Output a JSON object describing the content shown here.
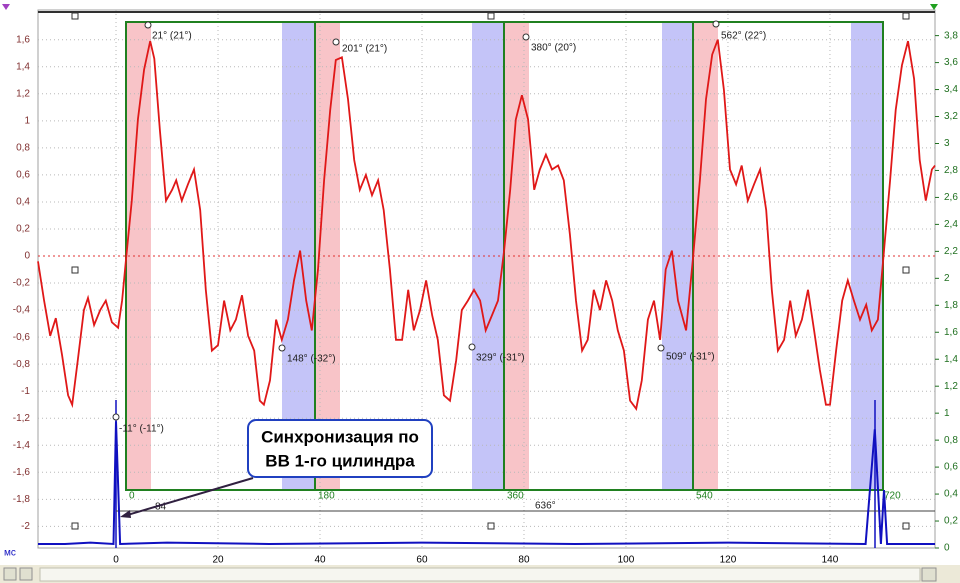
{
  "chart_data": {
    "type": "line",
    "x_unit": "мс",
    "xlim": [
      -15.3,
      160.6
    ],
    "xticks": [
      0,
      20,
      40,
      60,
      80,
      100,
      120,
      140
    ],
    "ylim": [
      -2.16,
      1.82
    ],
    "yticks": [
      -2,
      {
        "value": -1.8,
        "label": "-1,8"
      },
      {
        "value": -1.6,
        "label": "-1,6"
      },
      {
        "value": -1.4,
        "label": "-1,4"
      },
      {
        "value": -1.2,
        "label": "-1,2"
      },
      -1,
      {
        "value": -0.8,
        "label": "-0,8"
      },
      {
        "value": -0.6,
        "label": "-0,6"
      },
      {
        "value": -0.4,
        "label": "-0,4"
      },
      {
        "value": -0.2,
        "label": "-0,2"
      },
      0,
      {
        "value": 0.2,
        "label": "0,2"
      },
      {
        "value": 0.4,
        "label": "0,4"
      },
      {
        "value": 0.6,
        "label": "0,6"
      },
      {
        "value": 0.8,
        "label": "0,8"
      },
      1,
      {
        "value": 1.2,
        "label": "1,2"
      },
      {
        "value": 1.4,
        "label": "1,4"
      },
      {
        "value": 1.6,
        "label": "1,6"
      }
    ],
    "y2lim": [
      0,
      3.99
    ],
    "y2ticks": [
      0,
      {
        "value": 0.2,
        "label": "0,2"
      },
      {
        "value": 0.4,
        "label": "0,4"
      },
      {
        "value": 0.6,
        "label": "0,6"
      },
      {
        "value": 0.8,
        "label": "0,8"
      },
      1,
      {
        "value": 1.2,
        "label": "1,2"
      },
      {
        "value": 1.4,
        "label": "1,4"
      },
      {
        "value": 1.6,
        "label": "1,6"
      },
      {
        "value": 1.8,
        "label": "1,8"
      },
      2,
      {
        "value": 2.2,
        "label": "2,2"
      },
      {
        "value": 2.4,
        "label": "2,4"
      },
      {
        "value": 2.6,
        "label": "2,6"
      },
      {
        "value": 2.8,
        "label": "2,8"
      },
      3,
      {
        "value": 3.2,
        "label": "3,2"
      },
      {
        "value": 3.4,
        "label": "3,4"
      },
      {
        "value": 3.6,
        "label": "3,6"
      },
      {
        "value": 3.8,
        "label": "3,8"
      }
    ],
    "grid": true,
    "angle_labels": [
      0,
      180,
      360,
      540,
      720
    ],
    "annotations": [
      "21° (21°)",
      "201° (21°)",
      "380° (20°)",
      "562° (22°)",
      "148° (-32°)",
      "329° (-31°)",
      "509° (-31°)",
      "-11° (-11°)",
      "84",
      "636°"
    ],
    "callout": [
      "Синхронизация по",
      "ВВ 1-го цилиндра"
    ],
    "series": [
      {
        "color": "#e01818",
        "x": [
          -15.3,
          -14.1,
          -12.9,
          -11.8,
          -10.6,
          -9.4,
          -8.6,
          -7.5,
          -6.3,
          -5.5,
          -4.3,
          -3.1,
          -2.0,
          -0.8,
          0.4,
          1.2,
          2.0,
          3.1,
          4.3,
          5.5,
          6.7,
          7.5,
          8.6,
          9.8,
          11.0,
          11.8,
          12.9,
          14.1,
          15.3,
          16.5,
          17.6,
          18.8,
          20.0,
          21.2,
          22.4,
          23.5,
          24.7,
          25.9,
          27.1,
          28.2,
          29.0,
          30.2,
          31.4,
          32.5,
          33.7,
          34.9,
          36.1,
          37.3,
          38.4,
          39.6,
          40.8,
          42.0,
          43.1,
          44.3,
          45.5,
          46.7,
          47.8,
          49.0,
          50.2,
          51.4,
          52.5,
          53.7,
          54.9,
          56.1,
          57.3,
          58.4,
          59.6,
          60.8,
          62.0,
          63.1,
          64.3,
          65.5,
          66.7,
          67.8,
          69.0,
          70.2,
          71.4,
          72.5,
          73.7,
          74.9,
          76.1,
          77.3,
          78.4,
          79.6,
          80.8,
          82.0,
          83.1,
          84.3,
          85.5,
          86.7,
          87.8,
          89.0,
          90.2,
          91.4,
          92.5,
          93.7,
          94.9,
          96.1,
          97.3,
          98.4,
          99.6,
          100.8,
          102.0,
          103.1,
          104.3,
          105.5,
          106.7,
          107.8,
          109.0,
          110.2,
          111.8,
          113.1,
          114.5,
          115.7,
          116.9,
          118.0,
          119.2,
          120.4,
          121.6,
          122.7,
          123.9,
          125.1,
          126.3,
          127.5,
          128.6,
          129.8,
          131.0,
          132.2,
          133.3,
          134.5,
          135.7,
          136.9,
          138.0,
          139.2,
          140.0,
          141.2,
          142.4,
          143.5,
          144.7,
          145.9,
          147.1,
          148.2,
          149.4,
          150.6,
          151.8,
          152.9,
          154.1,
          155.3,
          156.5,
          157.6,
          158.8,
          160.0,
          160.6
        ],
        "values": [
          -0.04,
          -0.33,
          -0.59,
          -0.46,
          -0.73,
          -1.03,
          -1.1,
          -0.77,
          -0.4,
          -0.31,
          -0.51,
          -0.4,
          -0.33,
          -0.49,
          -0.53,
          -0.33,
          -0.01,
          0.41,
          1.01,
          1.38,
          1.59,
          1.46,
          0.93,
          0.41,
          0.49,
          0.56,
          0.41,
          0.53,
          0.64,
          0.34,
          -0.25,
          -0.7,
          -0.66,
          -0.33,
          -0.55,
          -0.47,
          -0.29,
          -0.59,
          -0.7,
          -1.07,
          -1.1,
          -0.92,
          -0.47,
          -0.62,
          -0.47,
          -0.18,
          0.04,
          -0.33,
          -0.55,
          -0.1,
          0.56,
          1.08,
          1.45,
          1.47,
          1.16,
          0.71,
          0.49,
          0.6,
          0.45,
          0.56,
          0.34,
          -0.1,
          -0.62,
          -0.62,
          -0.25,
          -0.55,
          -0.4,
          -0.18,
          -0.44,
          -0.62,
          -1.03,
          -1.07,
          -0.77,
          -0.4,
          -0.33,
          -0.25,
          -0.33,
          -0.55,
          -0.44,
          -0.33,
          0.04,
          0.49,
          1.01,
          1.19,
          1.01,
          0.49,
          0.64,
          0.75,
          0.64,
          0.67,
          0.56,
          0.16,
          -0.33,
          -0.7,
          -0.62,
          -0.25,
          -0.4,
          -0.18,
          -0.33,
          -0.55,
          -0.7,
          -1.07,
          -1.13,
          -0.92,
          -0.47,
          -0.33,
          -0.62,
          -0.1,
          0.04,
          -0.33,
          -0.55,
          -0.03,
          0.56,
          1.16,
          1.49,
          1.6,
          1.23,
          0.64,
          0.53,
          0.67,
          0.41,
          0.53,
          0.64,
          0.34,
          -0.25,
          -0.7,
          -0.62,
          -0.33,
          -0.59,
          -0.47,
          -0.25,
          -0.55,
          -0.84,
          -1.1,
          -1.1,
          -0.7,
          -0.33,
          -0.18,
          -0.33,
          -0.47,
          -0.36,
          -0.55,
          -0.47,
          0.04,
          0.56,
          1.08,
          1.41,
          1.59,
          1.31,
          0.71,
          0.41,
          0.64,
          0.67
        ]
      },
      {
        "color": "#1010c0",
        "axis": "y2",
        "x": [
          -15.3,
          -10,
          -5,
          -0.5,
          0,
          0.8,
          10,
          30,
          60,
          90,
          120,
          147,
          148.8,
          150,
          150.6,
          151.2,
          160.6
        ],
        "values": [
          0.03,
          0.03,
          0.04,
          0.03,
          0.94,
          0.03,
          0.04,
          0.03,
          0.04,
          0.03,
          0.04,
          0.03,
          0.88,
          0.03,
          0.43,
          0.03,
          0.03
        ]
      }
    ]
  }
}
